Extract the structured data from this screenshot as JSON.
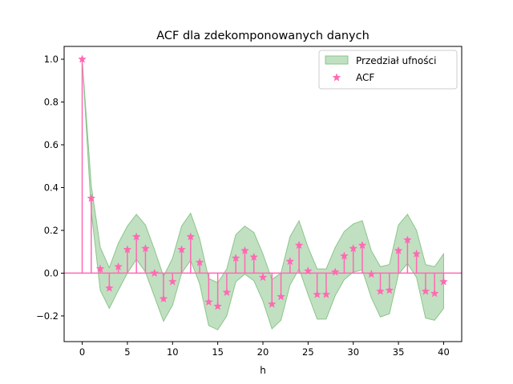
{
  "chart_data": {
    "type": "stem",
    "title": "ACF dla zdekomponowanych danych",
    "xlabel": "h",
    "ylabel": "",
    "xlim": [
      -2,
      42
    ],
    "ylim": [
      -0.32,
      1.06
    ],
    "xticks": [
      0,
      5,
      10,
      15,
      20,
      25,
      30,
      35,
      40
    ],
    "yticks": [
      -0.2,
      0.0,
      0.2,
      0.4,
      0.6,
      0.8,
      1.0
    ],
    "ytick_labels": [
      "−0.2",
      "0.0",
      "0.2",
      "0.4",
      "0.6",
      "0.8",
      "1.0"
    ],
    "legend_position": "top-right",
    "colors": {
      "acf": "#ff69b4",
      "band_fill": "#a7d3a6",
      "band_edge": "#8cc48b"
    },
    "legend": [
      {
        "label": "Przedział ufności",
        "kind": "band"
      },
      {
        "label": "ACF",
        "kind": "star"
      }
    ],
    "series": [
      {
        "name": "ACF",
        "x": [
          0,
          1,
          2,
          3,
          4,
          5,
          6,
          7,
          8,
          9,
          10,
          11,
          12,
          13,
          14,
          15,
          16,
          17,
          18,
          19,
          20,
          21,
          22,
          23,
          24,
          25,
          26,
          27,
          28,
          29,
          30,
          31,
          32,
          33,
          34,
          35,
          36,
          37,
          38,
          39,
          40
        ],
        "values": [
          1.0,
          0.35,
          0.02,
          -0.07,
          0.03,
          0.11,
          0.17,
          0.115,
          0.0,
          -0.12,
          -0.04,
          0.11,
          0.17,
          0.05,
          -0.135,
          -0.155,
          -0.09,
          0.07,
          0.105,
          0.075,
          -0.02,
          -0.145,
          -0.11,
          0.055,
          0.13,
          0.01,
          -0.1,
          -0.1,
          0.005,
          0.08,
          0.115,
          0.13,
          -0.005,
          -0.085,
          -0.08,
          0.105,
          0.155,
          0.09,
          -0.085,
          -0.095,
          -0.04
        ]
      },
      {
        "name": "Przedział ufności",
        "x": [
          0,
          1,
          2,
          3,
          4,
          5,
          6,
          7,
          8,
          9,
          10,
          11,
          12,
          13,
          14,
          15,
          16,
          17,
          18,
          19,
          20,
          21,
          22,
          23,
          24,
          25,
          26,
          27,
          28,
          29,
          30,
          31,
          32,
          33,
          34,
          35,
          36,
          37,
          38,
          39,
          40
        ],
        "lower": [
          1.0,
          0.29,
          -0.08,
          -0.165,
          -0.08,
          0.0,
          0.065,
          0.005,
          -0.11,
          -0.225,
          -0.15,
          0.0,
          0.06,
          -0.05,
          -0.245,
          -0.265,
          -0.2,
          -0.04,
          -0.005,
          -0.035,
          -0.13,
          -0.26,
          -0.22,
          -0.055,
          0.02,
          -0.1,
          -0.215,
          -0.215,
          -0.105,
          -0.03,
          0.005,
          0.015,
          -0.115,
          -0.205,
          -0.19,
          -0.005,
          0.045,
          -0.02,
          -0.21,
          -0.22,
          -0.165
        ],
        "upper": [
          1.0,
          0.41,
          0.12,
          0.025,
          0.14,
          0.22,
          0.275,
          0.225,
          0.11,
          -0.015,
          0.07,
          0.22,
          0.28,
          0.16,
          -0.025,
          -0.045,
          0.02,
          0.18,
          0.22,
          0.19,
          0.09,
          -0.03,
          0.0,
          0.17,
          0.245,
          0.12,
          0.02,
          0.02,
          0.12,
          0.195,
          0.23,
          0.245,
          0.105,
          0.03,
          0.04,
          0.225,
          0.275,
          0.2,
          0.04,
          0.03,
          0.09
        ]
      }
    ]
  }
}
